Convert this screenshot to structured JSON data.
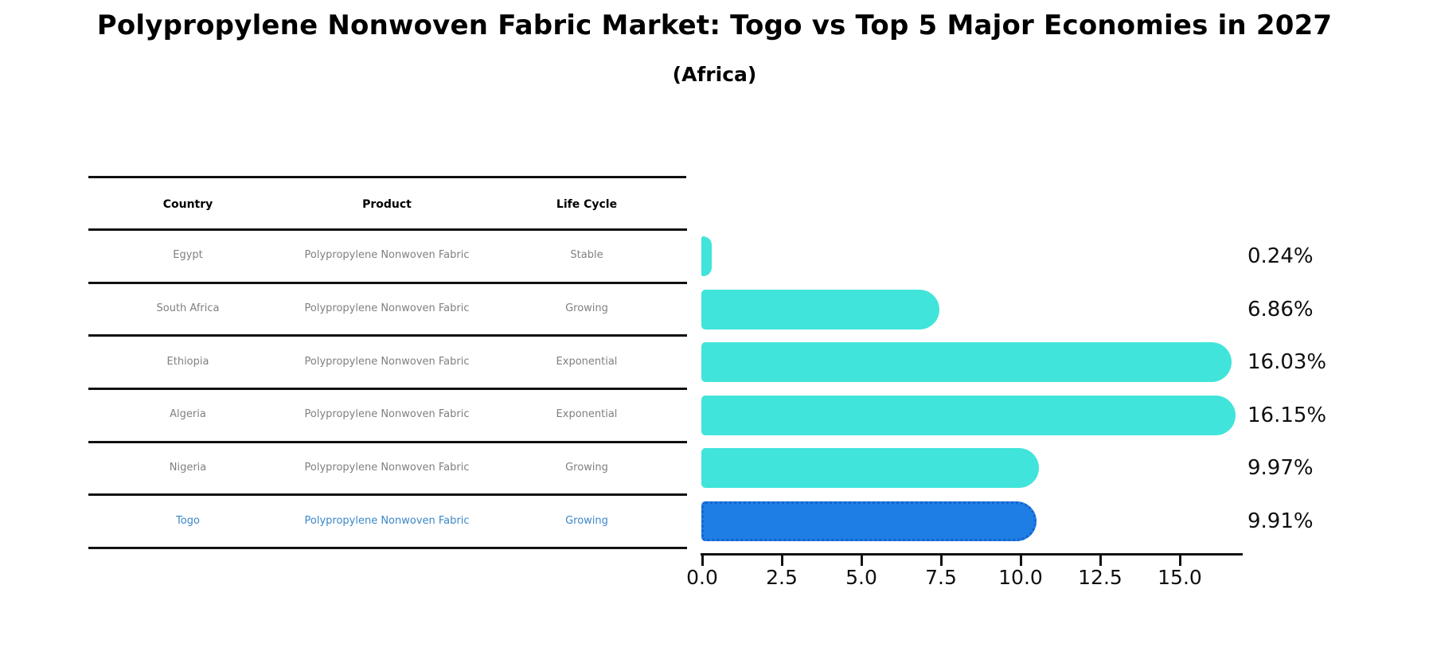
{
  "chart_data": {
    "type": "bar",
    "orientation": "horizontal",
    "title": "Polypropylene Nonwoven Fabric Market: Togo vs Top 5 Major Economies in 2027",
    "subtitle": "(Africa)",
    "categories": [
      "Egypt",
      "South Africa",
      "Ethiopia",
      "Algeria",
      "Nigeria",
      "Togo"
    ],
    "values": [
      0.24,
      6.86,
      16.03,
      16.15,
      9.97,
      9.91
    ],
    "value_labels": [
      "0.24%",
      "6.86%",
      "16.03%",
      "16.15%",
      "9.97%",
      "9.91%"
    ],
    "unit": "percent",
    "xlim": [
      0,
      17
    ],
    "x_ticks": [
      0.0,
      2.5,
      5.0,
      7.5,
      10.0,
      12.5,
      15.0
    ],
    "x_tick_labels": [
      "0.0",
      "2.5",
      "5.0",
      "7.5",
      "10.0",
      "12.5",
      "15.0"
    ],
    "grid": false,
    "legend": "none",
    "highlight_index": 5,
    "colors": {
      "bar": "#40e4da",
      "highlight_bar": "#1e7ee4",
      "highlight_border": "#1563cf",
      "axis": "#111111",
      "value_label": "#0f0f0f",
      "row_text": "#808080",
      "highlight_text": "#3a87c8"
    }
  },
  "table": {
    "headers": [
      "Country",
      "Product",
      "Life Cycle"
    ],
    "rows": [
      {
        "country": "Egypt",
        "product": "Polypropylene Nonwoven Fabric",
        "life_cycle": "Stable",
        "highlight": false
      },
      {
        "country": "South Africa",
        "product": "Polypropylene Nonwoven Fabric",
        "life_cycle": "Growing",
        "highlight": false
      },
      {
        "country": "Ethiopia",
        "product": "Polypropylene Nonwoven Fabric",
        "life_cycle": "Exponential",
        "highlight": false
      },
      {
        "country": "Algeria",
        "product": "Polypropylene Nonwoven Fabric",
        "life_cycle": "Exponential",
        "highlight": false
      },
      {
        "country": "Nigeria",
        "product": "Polypropylene Nonwoven Fabric",
        "life_cycle": "Growing",
        "highlight": false
      },
      {
        "country": "Togo",
        "product": "Polypropylene Nonwoven Fabric",
        "life_cycle": "Growing",
        "highlight": true
      }
    ]
  }
}
